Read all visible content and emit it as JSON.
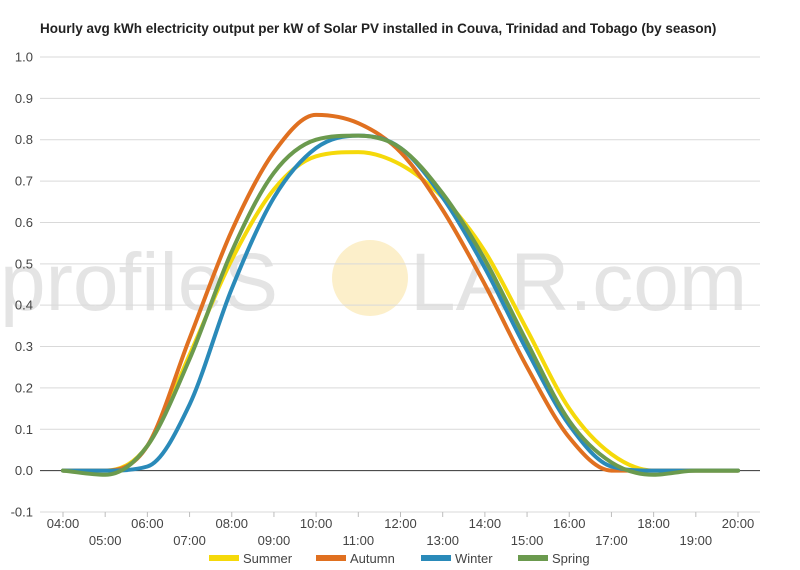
{
  "watermark": {
    "left": "profileS",
    "right": "LAR.com"
  },
  "chart_data": {
    "type": "line",
    "title": "Hourly avg kWh electricity output per kW of Solar PV installed in Couva, Trinidad and Tobago (by season)",
    "xlabel": "",
    "ylabel": "",
    "ylim": [
      -0.1,
      1.0
    ],
    "y_ticks": [
      "-0.1",
      "0.0",
      "0.1",
      "0.2",
      "0.3",
      "0.4",
      "0.5",
      "0.6",
      "0.7",
      "0.8",
      "0.9",
      "1.0"
    ],
    "x": [
      "04:00",
      "05:00",
      "06:00",
      "07:00",
      "08:00",
      "09:00",
      "10:00",
      "11:00",
      "12:00",
      "13:00",
      "14:00",
      "15:00",
      "16:00",
      "17:00",
      "18:00",
      "19:00",
      "20:00"
    ],
    "grid": true,
    "legend_position": "bottom",
    "series": [
      {
        "name": "Summer",
        "color": "#f5d90a",
        "values": [
          0.0,
          0.0,
          0.06,
          0.28,
          0.51,
          0.68,
          0.76,
          0.77,
          0.74,
          0.66,
          0.53,
          0.34,
          0.15,
          0.04,
          0.0,
          0.0,
          0.0
        ]
      },
      {
        "name": "Autumn",
        "color": "#e07020",
        "values": [
          0.0,
          0.0,
          0.06,
          0.32,
          0.58,
          0.77,
          0.86,
          0.84,
          0.77,
          0.63,
          0.45,
          0.25,
          0.08,
          0.0,
          0.0,
          0.0,
          0.0
        ]
      },
      {
        "name": "Winter",
        "color": "#2a8ab9",
        "values": [
          0.0,
          0.0,
          0.01,
          0.16,
          0.44,
          0.66,
          0.78,
          0.81,
          0.78,
          0.66,
          0.49,
          0.29,
          0.11,
          0.01,
          0.0,
          0.0,
          0.0
        ]
      },
      {
        "name": "Spring",
        "color": "#6b9a4e",
        "values": [
          0.0,
          -0.01,
          0.06,
          0.27,
          0.53,
          0.72,
          0.8,
          0.81,
          0.78,
          0.67,
          0.51,
          0.31,
          0.12,
          0.02,
          -0.01,
          0.0,
          0.0
        ]
      }
    ]
  }
}
